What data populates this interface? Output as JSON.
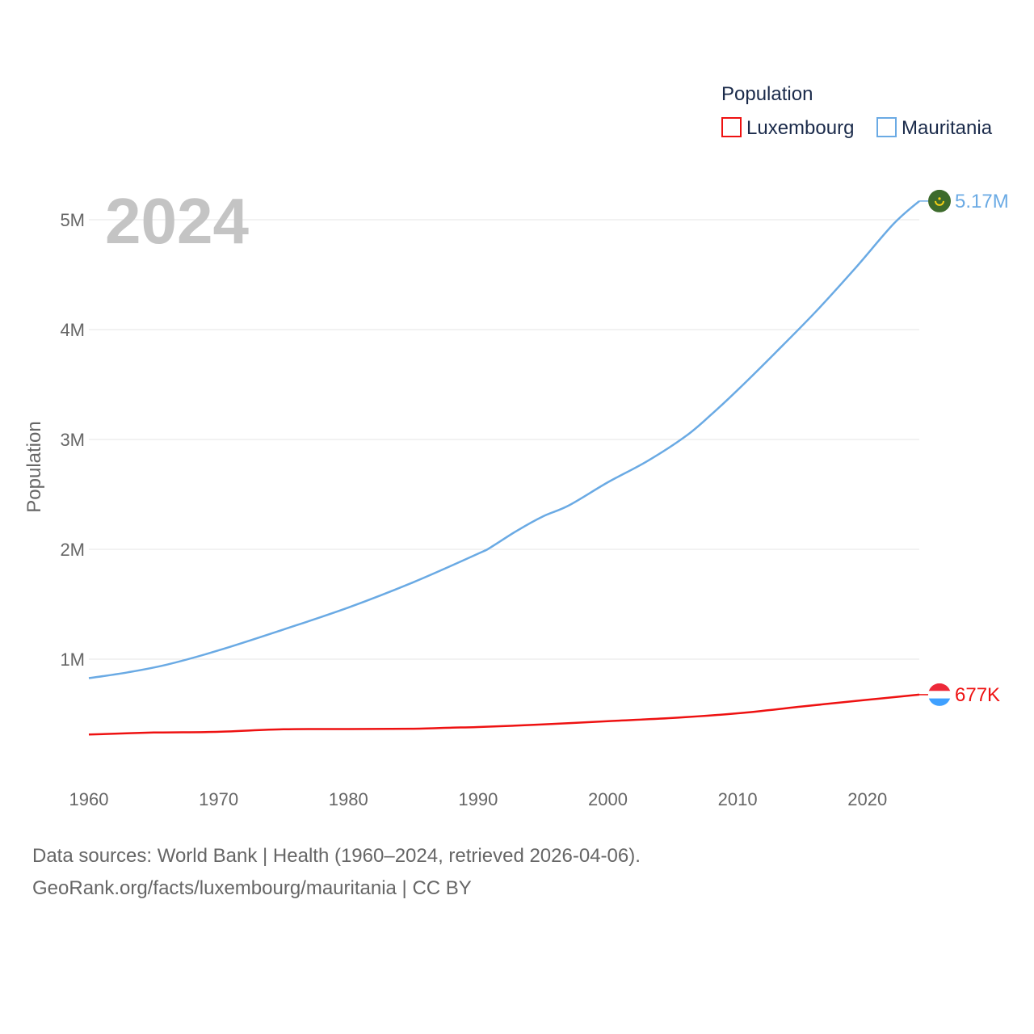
{
  "chart_data": {
    "type": "line",
    "ylabel": "Population",
    "year_label": "2024",
    "legend_title": "Population",
    "xlim": [
      1960,
      2024
    ],
    "ylim": [
      0,
      5200000
    ],
    "x_ticks": [
      1960,
      1970,
      1980,
      1990,
      2000,
      2010,
      2020
    ],
    "x_tick_labels": [
      "1960",
      "1970",
      "1980",
      "1990",
      "2000",
      "2010",
      "2020"
    ],
    "y_ticks": [
      1000000,
      2000000,
      3000000,
      4000000,
      5000000
    ],
    "y_tick_labels": [
      "1M",
      "2M",
      "3M",
      "4M",
      "5M"
    ],
    "series": [
      {
        "name": "Luxembourg",
        "color": "#ee1111",
        "end_label": "677K",
        "flag": "luxembourg-flag",
        "flag_colors": [
          "#ed2939",
          "#ffffff",
          "#3fa0ff"
        ],
        "points": [
          [
            1960,
            314000
          ],
          [
            1965,
            332000
          ],
          [
            1970,
            339000
          ],
          [
            1975,
            362000
          ],
          [
            1980,
            364000
          ],
          [
            1985,
            367000
          ],
          [
            1988,
            377000
          ],
          [
            1990,
            382000
          ],
          [
            1995,
            406000
          ],
          [
            2000,
            436000
          ],
          [
            2005,
            465000
          ],
          [
            2010,
            507000
          ],
          [
            2015,
            570000
          ],
          [
            2020,
            630000
          ],
          [
            2024,
            677000
          ]
        ]
      },
      {
        "name": "Mauritania",
        "color": "#6aaae4",
        "end_label": "5.17M",
        "flag": "mauritania-flag",
        "flag_colors": [
          "#3d6b2c",
          "#f7d116"
        ],
        "points": [
          [
            1960,
            827000
          ],
          [
            1963,
            880000
          ],
          [
            1966,
            950000
          ],
          [
            1970,
            1080000
          ],
          [
            1975,
            1270000
          ],
          [
            1980,
            1470000
          ],
          [
            1985,
            1700000
          ],
          [
            1990,
            1960000
          ],
          [
            1991,
            2020000
          ],
          [
            1993,
            2170000
          ],
          [
            1995,
            2300000
          ],
          [
            1997,
            2400000
          ],
          [
            2000,
            2610000
          ],
          [
            2003,
            2800000
          ],
          [
            2006,
            3030000
          ],
          [
            2008,
            3230000
          ],
          [
            2010,
            3450000
          ],
          [
            2013,
            3800000
          ],
          [
            2016,
            4160000
          ],
          [
            2019,
            4550000
          ],
          [
            2022,
            4960000
          ],
          [
            2024,
            5170000
          ]
        ]
      }
    ]
  },
  "footer": {
    "line1": "Data sources: World Bank | Health (1960–2024, retrieved 2026-04-06).",
    "line2": "GeoRank.org/facts/luxembourg/mauritania | CC BY"
  }
}
